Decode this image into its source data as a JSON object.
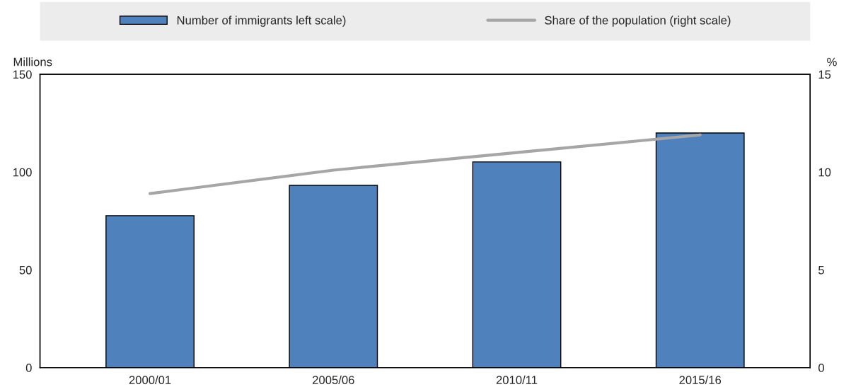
{
  "chart_data": {
    "type": "bar",
    "ylabel": "Millions",
    "y2label": "%",
    "categories": [
      "2000/01",
      "2005/06",
      "2010/11",
      "2015/16"
    ],
    "series": [
      {
        "name": "Number of immigrants left scale)",
        "color": "#4f81bd",
        "values": [
          77.7,
          93.2,
          105.2,
          120
        ]
      },
      {
        "name": "Share of the population (right scale)",
        "type": "line",
        "axis": "y2",
        "color": "#a6a6a6",
        "values": [
          8.9,
          10.1,
          11.0,
          11.9
        ]
      }
    ],
    "ylim": [
      0,
      150
    ],
    "yticks": [
      0,
      50,
      100,
      150
    ],
    "y2lim": [
      0,
      15
    ],
    "y2ticks": [
      0,
      5,
      10,
      15
    ],
    "legend": "top",
    "grid": false
  }
}
